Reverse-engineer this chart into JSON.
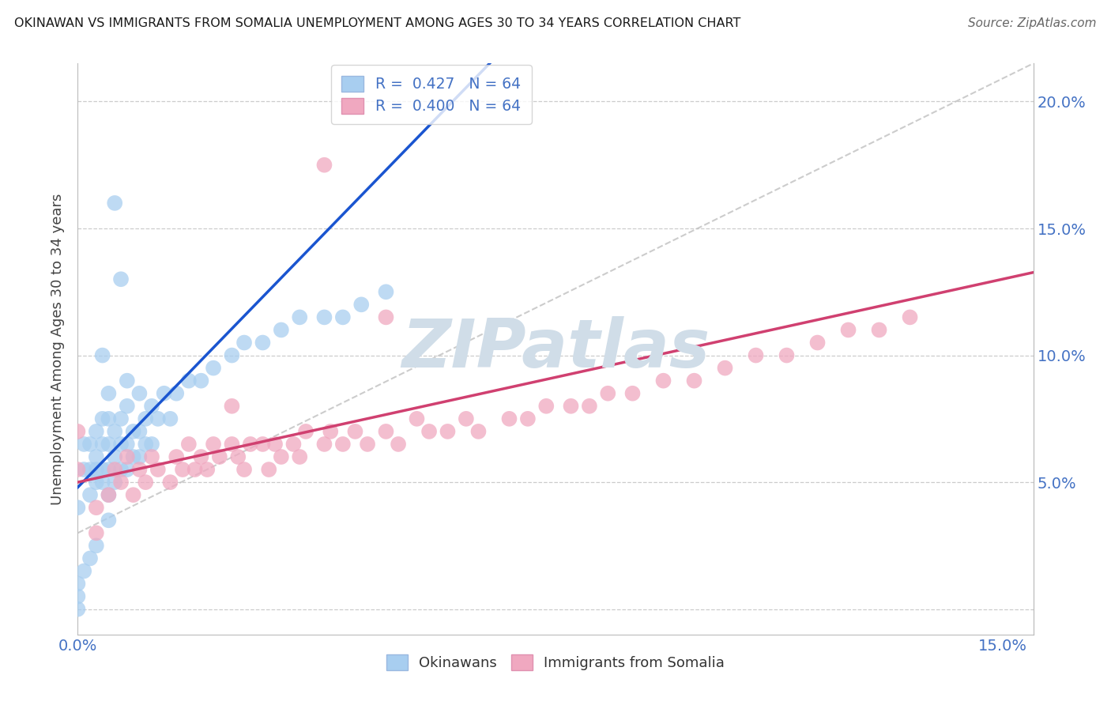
{
  "title": "OKINAWAN VS IMMIGRANTS FROM SOMALIA UNEMPLOYMENT AMONG AGES 30 TO 34 YEARS CORRELATION CHART",
  "source": "Source: ZipAtlas.com",
  "ylabel_label": "Unemployment Among Ages 30 to 34 years",
  "xlim": [
    0.0,
    0.155
  ],
  "ylim": [
    -0.01,
    0.215
  ],
  "yticks": [
    0.0,
    0.05,
    0.1,
    0.15,
    0.2
  ],
  "ytick_labels_right": [
    "",
    "5.0%",
    "10.0%",
    "15.0%",
    "20.0%"
  ],
  "xtick_vals": [
    0.0,
    0.15
  ],
  "xtick_labels": [
    "0.0%",
    "15.0%"
  ],
  "legend_r_entries": [
    {
      "label": "R =  0.427   N = 64",
      "color": "#a8cef0"
    },
    {
      "label": "R =  0.400   N = 64",
      "color": "#f0a8c0"
    }
  ],
  "legend_bottom": [
    "Okinawans",
    "Immigrants from Somalia"
  ],
  "blue_scatter_color": "#a8cef0",
  "pink_scatter_color": "#f0a8c0",
  "blue_line_color": "#1a55d0",
  "pink_line_color": "#d04070",
  "ref_line_color": "#c0c0c0",
  "background_color": "#ffffff",
  "watermark_text": "ZIPatlas",
  "watermark_color": "#d0dde8",
  "tick_label_color": "#4472c4",
  "title_color": "#1a1a1a",
  "ylabel_color": "#444444",
  "okinawan_x": [
    0.0,
    0.001,
    0.001,
    0.002,
    0.002,
    0.002,
    0.003,
    0.003,
    0.003,
    0.003,
    0.004,
    0.004,
    0.004,
    0.004,
    0.005,
    0.005,
    0.005,
    0.005,
    0.005,
    0.006,
    0.006,
    0.006,
    0.007,
    0.007,
    0.007,
    0.008,
    0.008,
    0.008,
    0.009,
    0.009,
    0.01,
    0.01,
    0.01,
    0.011,
    0.011,
    0.012,
    0.012,
    0.013,
    0.014,
    0.015,
    0.016,
    0.018,
    0.02,
    0.022,
    0.025,
    0.027,
    0.03,
    0.033,
    0.036,
    0.04,
    0.043,
    0.046,
    0.05,
    0.006,
    0.007,
    0.008,
    0.004,
    0.005,
    0.003,
    0.002,
    0.001,
    0.0,
    0.0,
    0.0
  ],
  "okinawan_y": [
    0.04,
    0.055,
    0.065,
    0.045,
    0.055,
    0.065,
    0.05,
    0.055,
    0.06,
    0.07,
    0.05,
    0.055,
    0.065,
    0.075,
    0.045,
    0.055,
    0.065,
    0.075,
    0.085,
    0.05,
    0.06,
    0.07,
    0.055,
    0.065,
    0.075,
    0.055,
    0.065,
    0.08,
    0.06,
    0.07,
    0.06,
    0.07,
    0.085,
    0.065,
    0.075,
    0.065,
    0.08,
    0.075,
    0.085,
    0.075,
    0.085,
    0.09,
    0.09,
    0.095,
    0.1,
    0.105,
    0.105,
    0.11,
    0.115,
    0.115,
    0.115,
    0.12,
    0.125,
    0.16,
    0.13,
    0.09,
    0.1,
    0.035,
    0.025,
    0.02,
    0.015,
    0.01,
    0.005,
    0.0
  ],
  "somalia_x": [
    0.0,
    0.0,
    0.003,
    0.005,
    0.006,
    0.007,
    0.008,
    0.009,
    0.01,
    0.011,
    0.012,
    0.013,
    0.015,
    0.016,
    0.017,
    0.018,
    0.019,
    0.02,
    0.021,
    0.022,
    0.023,
    0.025,
    0.026,
    0.027,
    0.028,
    0.03,
    0.031,
    0.032,
    0.033,
    0.035,
    0.036,
    0.037,
    0.04,
    0.041,
    0.043,
    0.045,
    0.047,
    0.05,
    0.052,
    0.055,
    0.057,
    0.06,
    0.063,
    0.065,
    0.07,
    0.073,
    0.076,
    0.08,
    0.083,
    0.086,
    0.09,
    0.095,
    0.1,
    0.105,
    0.11,
    0.115,
    0.12,
    0.125,
    0.13,
    0.135,
    0.04,
    0.05,
    0.003,
    0.025
  ],
  "somalia_y": [
    0.055,
    0.07,
    0.04,
    0.045,
    0.055,
    0.05,
    0.06,
    0.045,
    0.055,
    0.05,
    0.06,
    0.055,
    0.05,
    0.06,
    0.055,
    0.065,
    0.055,
    0.06,
    0.055,
    0.065,
    0.06,
    0.065,
    0.06,
    0.055,
    0.065,
    0.065,
    0.055,
    0.065,
    0.06,
    0.065,
    0.06,
    0.07,
    0.065,
    0.07,
    0.065,
    0.07,
    0.065,
    0.07,
    0.065,
    0.075,
    0.07,
    0.07,
    0.075,
    0.07,
    0.075,
    0.075,
    0.08,
    0.08,
    0.08,
    0.085,
    0.085,
    0.09,
    0.09,
    0.095,
    0.1,
    0.1,
    0.105,
    0.11,
    0.11,
    0.115,
    0.175,
    0.115,
    0.03,
    0.08
  ]
}
